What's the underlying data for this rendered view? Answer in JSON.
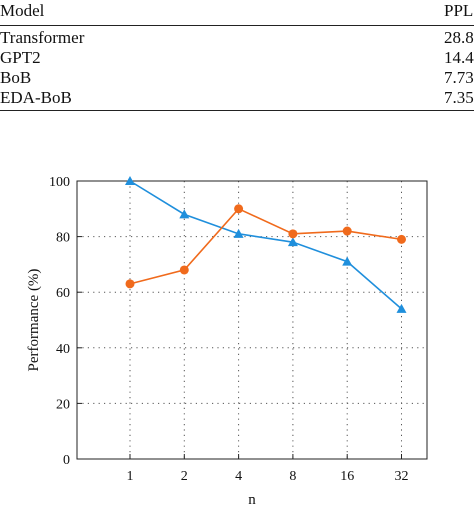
{
  "table": {
    "headers": [
      "Model",
      "PPL"
    ],
    "rows": [
      {
        "model": "Transformer",
        "ppl": "28.8"
      },
      {
        "model": "GPT2",
        "ppl": "14.4"
      },
      {
        "model": "BoB",
        "ppl": "7.73"
      },
      {
        "model": "EDA-BoB",
        "ppl": "7.35"
      }
    ]
  },
  "chart_data": {
    "type": "line",
    "xlabel": "n",
    "ylabel": "Performance (%)",
    "categories": [
      "1",
      "2",
      "4",
      "8",
      "16",
      "32"
    ],
    "ylim": [
      0,
      100
    ],
    "yticks": [
      0,
      20,
      40,
      60,
      80,
      100
    ],
    "grid": true,
    "series": [
      {
        "marker": "triangle",
        "color": "#1f8fdc",
        "values": [
          100,
          88,
          81,
          78,
          71,
          54
        ]
      },
      {
        "marker": "circle",
        "color": "#f06a1c",
        "values": [
          63,
          68,
          90,
          81,
          82,
          79
        ]
      }
    ]
  }
}
